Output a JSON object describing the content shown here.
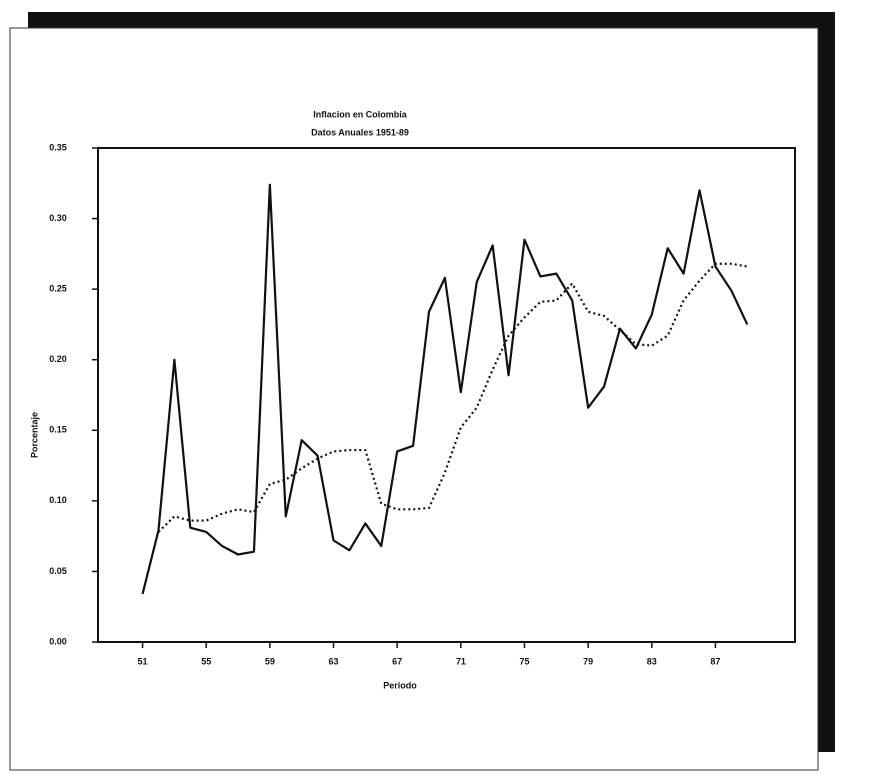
{
  "chart_data": {
    "type": "line",
    "title": "Inflacion en Colombia",
    "subtitle": "Datos Anuales 1951-89",
    "xlabel": "Periodo",
    "ylabel": "Porcentaje",
    "x": [
      1951,
      1952,
      1953,
      1954,
      1955,
      1956,
      1957,
      1958,
      1959,
      1960,
      1961,
      1962,
      1963,
      1964,
      1965,
      1966,
      1967,
      1968,
      1969,
      1970,
      1971,
      1972,
      1973,
      1974,
      1975,
      1976,
      1977,
      1978,
      1979,
      1980,
      1981,
      1982,
      1983,
      1984,
      1985,
      1986,
      1987,
      1988,
      1989
    ],
    "series": [
      {
        "color": "#111111",
        "style": "solid",
        "values": [
          0.034,
          0.079,
          0.2,
          0.081,
          0.078,
          0.068,
          0.062,
          0.064,
          0.324,
          0.089,
          0.143,
          0.132,
          0.072,
          0.065,
          0.084,
          0.068,
          0.135,
          0.139,
          0.234,
          0.258,
          0.177,
          0.255,
          0.281,
          0.189,
          0.285,
          0.259,
          0.261,
          0.242,
          0.166,
          0.181,
          0.222,
          0.208,
          0.232,
          0.279,
          0.261,
          0.32,
          0.266,
          0.249,
          0.225
        ]
      },
      {
        "color": "#111111",
        "style": "dotted",
        "values": [
          null,
          0.078,
          0.089,
          0.086,
          0.086,
          0.091,
          0.094,
          0.092,
          0.112,
          0.115,
          0.123,
          0.13,
          0.135,
          0.136,
          0.136,
          0.098,
          0.094,
          0.094,
          0.095,
          0.12,
          0.152,
          0.166,
          0.193,
          0.217,
          0.23,
          0.241,
          0.242,
          0.254,
          0.234,
          0.231,
          0.221,
          0.211,
          0.21,
          0.217,
          0.242,
          0.256,
          0.268,
          0.268,
          0.266
        ]
      }
    ],
    "xlim": [
      1948.2,
      1992
    ],
    "xticks": [
      {
        "value": 1951,
        "label": "51"
      },
      {
        "value": 1955,
        "label": "55"
      },
      {
        "value": 1959,
        "label": "59"
      },
      {
        "value": 1963,
        "label": "63"
      },
      {
        "value": 1967,
        "label": "67"
      },
      {
        "value": 1971,
        "label": "71"
      },
      {
        "value": 1975,
        "label": "75"
      },
      {
        "value": 1979,
        "label": "79"
      },
      {
        "value": 1983,
        "label": "83"
      },
      {
        "value": 1987,
        "label": "87"
      }
    ],
    "ylim": [
      0,
      0.35
    ],
    "yticks": [
      {
        "value": 0,
        "label": "0.00"
      },
      {
        "value": 0.05,
        "label": "0.05"
      },
      {
        "value": 0.1,
        "label": "0.10"
      },
      {
        "value": 0.15,
        "label": "0.15"
      },
      {
        "value": 0.2,
        "label": "0.20"
      },
      {
        "value": 0.25,
        "label": "0.25"
      },
      {
        "value": 0.3,
        "label": "0.30"
      },
      {
        "value": 0.35,
        "label": "0.35"
      }
    ],
    "grid": false
  }
}
